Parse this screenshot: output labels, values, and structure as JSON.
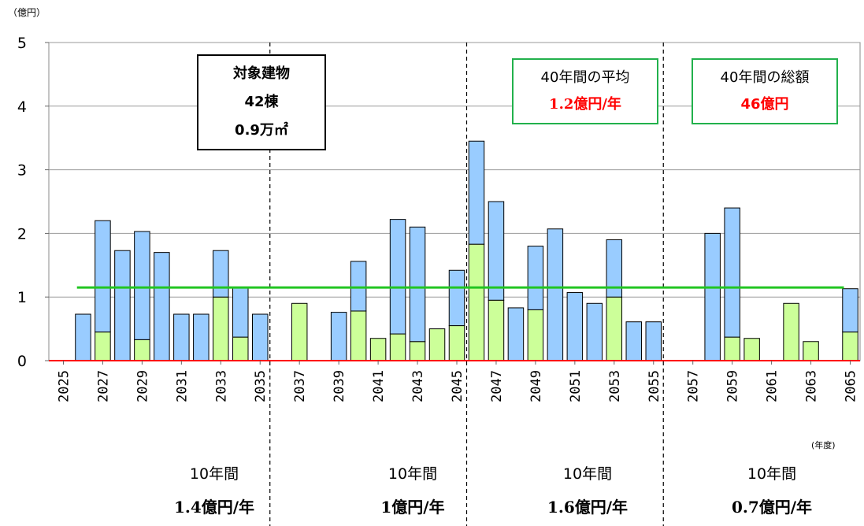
{
  "chart_data": {
    "type": "bar",
    "stacked": true,
    "y_unit_label": "（億円）",
    "x_unit_label": "(年度)",
    "ylim": [
      0,
      5
    ],
    "yticks": [
      0,
      1,
      2,
      3,
      4,
      5
    ],
    "grid": true,
    "years": [
      2025,
      2026,
      2027,
      2028,
      2029,
      2030,
      2031,
      2032,
      2033,
      2034,
      2035,
      2036,
      2037,
      2038,
      2039,
      2040,
      2041,
      2042,
      2043,
      2044,
      2045,
      2046,
      2047,
      2048,
      2049,
      2050,
      2051,
      2052,
      2053,
      2054,
      2055,
      2056,
      2057,
      2058,
      2059,
      2060,
      2061,
      2062,
      2063,
      2064,
      2065
    ],
    "tick_labels": [
      "2025",
      "2027",
      "2029",
      "2031",
      "2033",
      "2035",
      "2037",
      "2039",
      "2041",
      "2043",
      "2045",
      "2047",
      "2049",
      "2051",
      "2053",
      "2055",
      "2057",
      "2059",
      "2061",
      "2063",
      "2065"
    ],
    "series": [
      {
        "color": "#ccff99",
        "values": [
          0,
          0,
          0.45,
          0,
          0.33,
          0,
          0,
          0,
          1.0,
          0.37,
          0,
          0,
          0.9,
          0,
          0,
          0.78,
          0.35,
          0.42,
          0.3,
          0.5,
          0.55,
          1.83,
          0.95,
          0,
          0.8,
          0,
          0,
          0,
          1.0,
          0,
          0,
          0,
          0,
          0,
          0.37,
          0.35,
          0,
          0.9,
          0.3,
          0,
          0.45
        ]
      },
      {
        "color": "#99ccff",
        "values": [
          0,
          0.73,
          1.75,
          1.73,
          1.7,
          1.7,
          0.73,
          0.73,
          0.73,
          0.77,
          0.73,
          0,
          0,
          0,
          0.76,
          0.78,
          0,
          1.8,
          1.8,
          0,
          0.87,
          1.62,
          1.55,
          0.83,
          1.0,
          2.07,
          1.07,
          0.9,
          0.9,
          0.61,
          0.61,
          0,
          0,
          2.0,
          2.03,
          0,
          0,
          0,
          0,
          0,
          0.68
        ]
      }
    ],
    "average_line": {
      "value": 1.15,
      "color": "#22c522"
    },
    "baseline_color": "#ff0000",
    "period_dividers_after_years": [
      2035.5,
      2045.5,
      2055.5
    ],
    "annotations": {
      "target": {
        "title": "対象建物",
        "count": "42棟",
        "area": "0.9万㎡"
      },
      "average": {
        "label": "40年間の平均",
        "value": "1.2億円/年"
      },
      "total": {
        "label": "40年間の総額",
        "value": "46億円"
      }
    },
    "period_summaries": [
      {
        "period": "10年間",
        "value": "1.4億円/年"
      },
      {
        "period": "10年間",
        "value": "1億円/年"
      },
      {
        "period": "10年間",
        "value": "1.6億円/年"
      },
      {
        "period": "10年間",
        "value": "0.7億円/年"
      }
    ],
    "accent_red": "#ff0000"
  }
}
